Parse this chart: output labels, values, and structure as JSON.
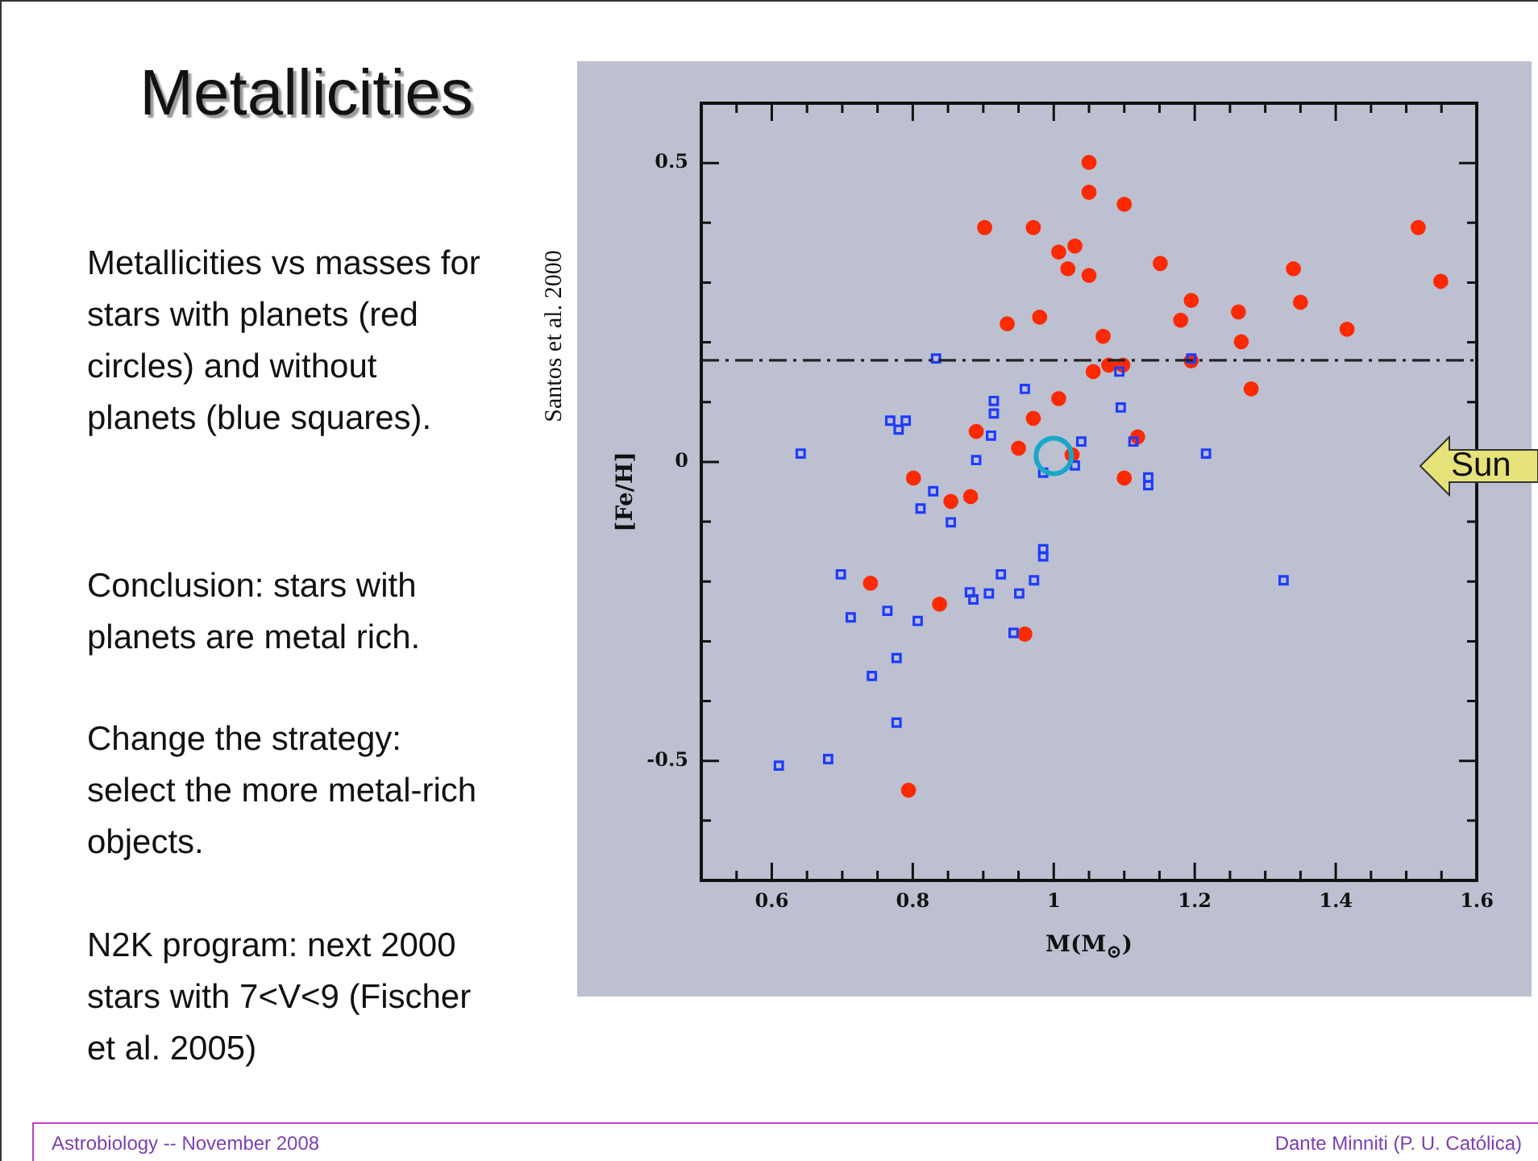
{
  "chart_data": {
    "type": "scatter",
    "title": "Metallicities",
    "xlabel": "M(M$_{⊙}$)",
    "ylabel": "[Fe/H]",
    "xlim": [
      0.5,
      1.6
    ],
    "ylim": [
      -0.7,
      0.6
    ],
    "xticks": [
      {
        "value": 0.55,
        "label": null
      },
      0.6,
      {
        "value": 0.65,
        "label": null
      },
      {
        "value": 0.7,
        "label": null
      },
      {
        "value": 0.75,
        "label": null
      },
      0.8,
      {
        "value": 0.85,
        "label": null
      },
      {
        "value": 0.9,
        "label": null
      },
      {
        "value": 0.95,
        "label": null
      },
      1,
      {
        "value": 1.05,
        "label": null
      },
      {
        "value": 1.1,
        "label": null
      },
      {
        "value": 1.15,
        "label": null
      },
      1.2,
      {
        "value": 1.25,
        "label": null
      },
      {
        "value": 1.3,
        "label": null
      },
      {
        "value": 1.35,
        "label": null
      },
      1.4,
      {
        "value": 1.45,
        "label": null
      },
      {
        "value": 1.5,
        "label": null
      },
      {
        "value": 1.55,
        "label": null
      },
      1.6
    ],
    "yticks": [
      {
        "value": -0.6,
        "label": null
      },
      -0.5,
      {
        "value": -0.4,
        "label": null
      },
      {
        "value": -0.3,
        "label": null
      },
      {
        "value": -0.2,
        "label": null
      },
      {
        "value": -0.1,
        "label": null
      },
      0,
      {
        "value": 0.1,
        "label": null
      },
      {
        "value": 0.2,
        "label": null
      },
      {
        "value": 0.3,
        "label": null
      },
      {
        "value": 0.4,
        "label": null
      },
      0.5
    ],
    "legend": false,
    "series": [
      {
        "color": "#ff2a00",
        "marker": "circle",
        "x": [
          0.902,
          0.971,
          1.007,
          0.934,
          0.98,
          1.007,
          0.971,
          0.89,
          0.95,
          0.801,
          0.854,
          0.882,
          0.74,
          0.838,
          0.959,
          0.794,
          1.05,
          1.05,
          1.1,
          1.03,
          1.02,
          1.05,
          1.151,
          1.195,
          1.34,
          1.35,
          1.517,
          1.549,
          1.07,
          1.18,
          1.262,
          1.266,
          1.416,
          1.056,
          1.078,
          1.098,
          1.195,
          1.28,
          1.119,
          1.026,
          1.1
        ],
        "values": [
          0.392,
          0.392,
          0.351,
          0.231,
          0.242,
          0.106,
          0.073,
          0.051,
          0.023,
          -0.027,
          -0.066,
          -0.058,
          -0.203,
          -0.238,
          -0.288,
          -0.549,
          0.501,
          0.451,
          0.431,
          0.361,
          0.323,
          0.312,
          0.332,
          0.27,
          0.323,
          0.267,
          0.392,
          0.302,
          0.21,
          0.237,
          0.251,
          0.201,
          0.222,
          0.151,
          0.162,
          0.162,
          0.169,
          0.122,
          0.042,
          0.012,
          -0.027
        ]
      },
      {
        "color": "#1f3cff",
        "marker": "square",
        "x": [
          0.641,
          0.833,
          0.768,
          0.79,
          0.78,
          0.915,
          0.915,
          0.959,
          0.911,
          0.89,
          0.985,
          0.829,
          0.811,
          0.854,
          0.985,
          0.985,
          0.698,
          0.925,
          0.972,
          0.881,
          0.886,
          0.908,
          0.951,
          0.712,
          0.764,
          0.807,
          0.943,
          0.777,
          0.742,
          0.777,
          0.68,
          0.61,
          1.326,
          1.195,
          1.093,
          1.095,
          1.039,
          1.113,
          1.216,
          1.03,
          1.134,
          1.134
        ],
        "values": [
          0.014,
          0.173,
          0.069,
          0.069,
          0.054,
          0.102,
          0.081,
          0.122,
          0.044,
          0.003,
          -0.018,
          -0.049,
          -0.078,
          -0.101,
          -0.146,
          -0.158,
          -0.188,
          -0.188,
          -0.198,
          -0.218,
          -0.23,
          -0.22,
          -0.22,
          -0.26,
          -0.249,
          -0.266,
          -0.286,
          -0.328,
          -0.358,
          -0.436,
          -0.497,
          -0.508,
          -0.198,
          0.173,
          0.151,
          0.091,
          0.034,
          0.034,
          0.014,
          -0.006,
          -0.026,
          -0.039
        ]
      },
      {
        "color": "#19a7c9",
        "marker": "circle",
        "x": [
          1.0
        ],
        "values": [
          0.01
        ]
      }
    ],
    "ref_lines": [
      {
        "axis": "y",
        "value": 0.17,
        "color": "#222222",
        "line_style": "dashed"
      }
    ],
    "annotations": [
      "Santos et al. 2000",
      "Metallicities vs masses for stars with planets (red circles) and without planets (blue squares).",
      "Conclusion: stars with planets are metal rich.",
      "Change the strategy: select the more metal-rich objects.",
      "N2K program: next 2000 stars with 7<V<9 (Fischer et al. 2005)",
      "Sun",
      "Astrobiology -- November 2008",
      "Dante Minniti (P. U. Católica)"
    ]
  }
}
